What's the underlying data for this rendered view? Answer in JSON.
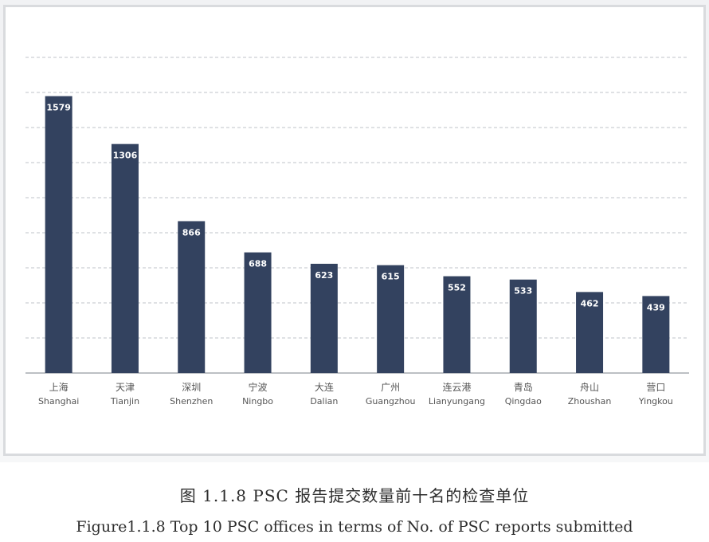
{
  "caption": {
    "zh": "图 1.1.8 PSC 报告提交数量前十名的检查单位",
    "en": "Figure1.1.8 Top 10 PSC offices in terms of No. of PSC reports submitted"
  },
  "chart_data": {
    "type": "bar",
    "categories": [
      {
        "zh": "上海",
        "en": "Shanghai"
      },
      {
        "zh": "天津",
        "en": "Tianjin"
      },
      {
        "zh": "深圳",
        "en": "Shenzhen"
      },
      {
        "zh": "宁波",
        "en": "Ningbo"
      },
      {
        "zh": "大连",
        "en": "Dalian"
      },
      {
        "zh": "广州",
        "en": "Guangzhou"
      },
      {
        "zh": "连云港",
        "en": "Lianyungang"
      },
      {
        "zh": "青岛",
        "en": "Qingdao"
      },
      {
        "zh": "舟山",
        "en": "Zhoushan"
      },
      {
        "zh": "营口",
        "en": "Yingkou"
      }
    ],
    "values": [
      1579,
      1306,
      866,
      688,
      623,
      615,
      552,
      533,
      462,
      439
    ],
    "ylim": [
      0,
      1800
    ],
    "grid": true,
    "grid_step": 200,
    "colors": {
      "bar": "#33425f",
      "grid": "#bfc3c8",
      "axis": "#a7abb0"
    }
  }
}
